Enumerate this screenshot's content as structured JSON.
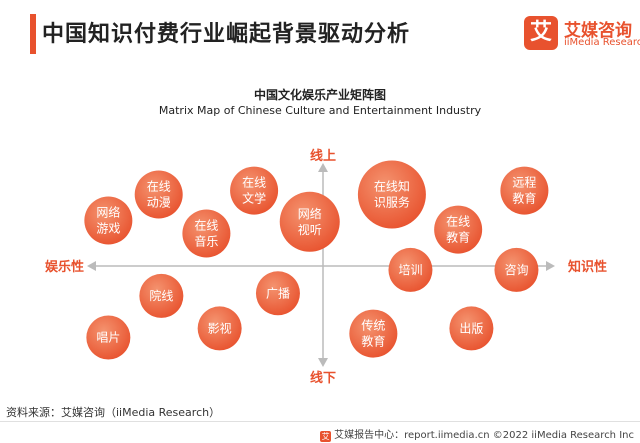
{
  "header": {
    "title": "中国知识付费行业崛起背景驱动分析",
    "logo_mark": "艾",
    "logo_cn": "艾媒咨询",
    "logo_en": "iiMedia Research"
  },
  "chart_data": {
    "type": "scatter",
    "title": "中国文化娱乐产业矩阵图",
    "subtitle": "Matrix Map of Chinese Culture and Entertainment Industry",
    "axes": {
      "top": "线上",
      "bottom": "线下",
      "left": "娱乐性",
      "right": "知识性"
    },
    "x_range": [
      -1,
      1
    ],
    "y_range": [
      -1,
      1
    ],
    "points": [
      {
        "lines": [
          "网络",
          "游戏"
        ],
        "x": -0.81,
        "y": 0.35
      },
      {
        "lines": [
          "在线",
          "动漫"
        ],
        "x": -0.62,
        "y": 0.55
      },
      {
        "lines": [
          "在线",
          "音乐"
        ],
        "x": -0.44,
        "y": 0.25
      },
      {
        "lines": [
          "在线",
          "文学"
        ],
        "x": -0.26,
        "y": 0.58
      },
      {
        "lines": [
          "网络",
          "视听"
        ],
        "x": -0.05,
        "y": 0.34
      },
      {
        "lines": [
          "在线知",
          "识服务"
        ],
        "x": 0.26,
        "y": 0.55
      },
      {
        "lines": [
          "远程",
          "教育"
        ],
        "x": 0.76,
        "y": 0.58
      },
      {
        "lines": [
          "在线",
          "教育"
        ],
        "x": 0.51,
        "y": 0.28
      },
      {
        "lines": [
          "培训"
        ],
        "x": 0.33,
        "y": -0.03
      },
      {
        "lines": [
          "咨询"
        ],
        "x": 0.73,
        "y": -0.03
      },
      {
        "lines": [
          "院线"
        ],
        "x": -0.61,
        "y": -0.23
      },
      {
        "lines": [
          "广播"
        ],
        "x": -0.17,
        "y": -0.21
      },
      {
        "lines": [
          "影视"
        ],
        "x": -0.39,
        "y": -0.48
      },
      {
        "lines": [
          "唱片"
        ],
        "x": -0.81,
        "y": -0.55
      },
      {
        "lines": [
          "传统",
          "教育"
        ],
        "x": 0.19,
        "y": -0.52
      },
      {
        "lines": [
          "出版"
        ],
        "x": 0.56,
        "y": -0.48
      }
    ],
    "color": "#e8522e"
  },
  "source": "资料来源：艾媒咨询（iiMedia Research）",
  "footer": "艾媒报告中心：report.iimedia.cn ©2022 iiMedia Research Inc"
}
